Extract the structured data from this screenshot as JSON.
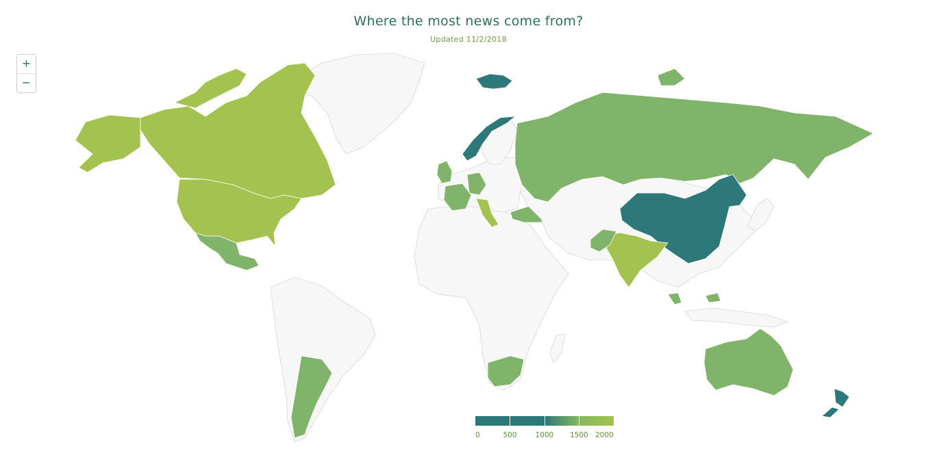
{
  "header": {
    "title": "Where the most news come from?",
    "subtitle": "Updated 11/2/2018"
  },
  "zoom": {
    "in_label": "+",
    "out_label": "−"
  },
  "legend": {
    "ticks": [
      "0",
      "500",
      "1000",
      "1500",
      "2000"
    ],
    "range": [
      0,
      2000
    ],
    "gradient_colors": [
      "#2d7878",
      "#2d7878",
      "#2d7878",
      "#86b85f",
      "#a3c24f"
    ]
  },
  "colors": {
    "title": "#2d7055",
    "subtitle": "#6aa140",
    "tick_text": "#5e8f3e",
    "no_data": "#f7f7f7",
    "border": "#d6d6d6",
    "high": "#a3c24f",
    "mid_high": "#86b85f",
    "mid": "#7fb46a",
    "low": "#2d7878"
  },
  "regions": [
    {
      "name": "Canada",
      "level": "high"
    },
    {
      "name": "United States",
      "level": "high"
    },
    {
      "name": "Mexico",
      "level": "mid"
    },
    {
      "name": "Greenland",
      "level": "none"
    },
    {
      "name": "Argentina",
      "level": "mid"
    },
    {
      "name": "Russia",
      "level": "mid"
    },
    {
      "name": "China",
      "level": "low"
    },
    {
      "name": "India",
      "level": "high"
    },
    {
      "name": "Pakistan",
      "level": "mid"
    },
    {
      "name": "Australia",
      "level": "mid"
    },
    {
      "name": "New Zealand",
      "level": "low"
    },
    {
      "name": "Norway",
      "level": "low"
    },
    {
      "name": "Svalbard",
      "level": "low"
    },
    {
      "name": "Turkey",
      "level": "mid"
    },
    {
      "name": "South Africa",
      "level": "mid"
    },
    {
      "name": "France",
      "level": "mid"
    },
    {
      "name": "United Kingdom",
      "level": "mid"
    },
    {
      "name": "Italy",
      "level": "high"
    },
    {
      "name": "Germany",
      "level": "mid"
    },
    {
      "name": "Malaysia",
      "level": "mid"
    }
  ]
}
